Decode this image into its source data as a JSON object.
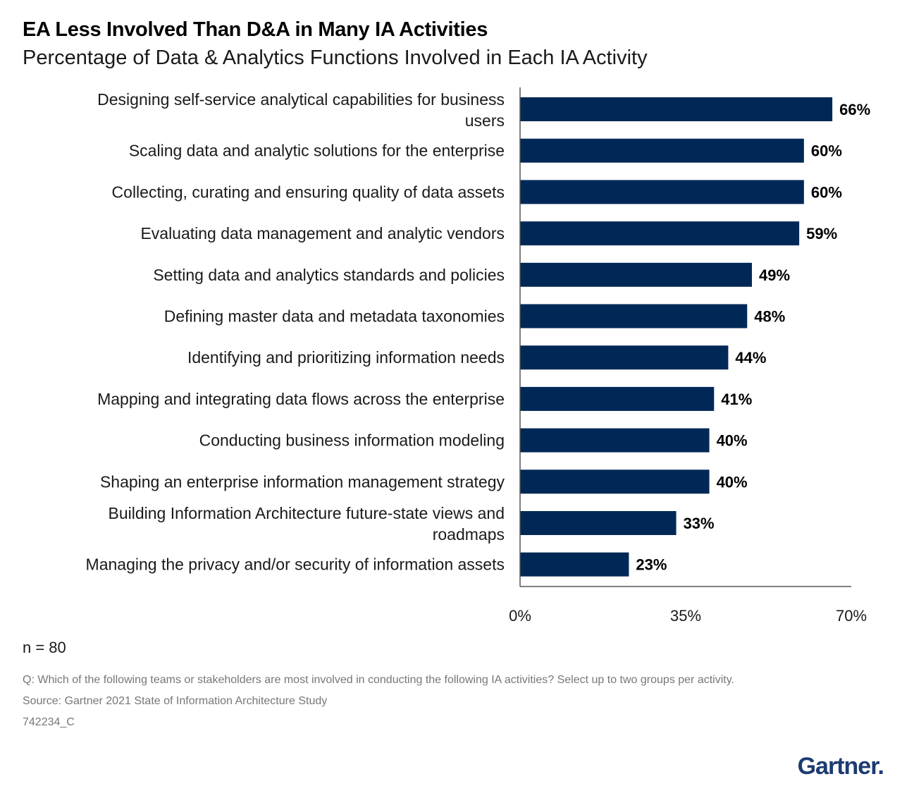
{
  "title": "EA Less Involved Than D&A in Many IA Activities",
  "subtitle": "Percentage of Data & Analytics Functions Involved in Each IA Activity",
  "chart_data": {
    "type": "bar",
    "orientation": "horizontal",
    "categories": [
      [
        "Designing self-service analytical capabilities for business",
        "users"
      ],
      [
        "Scaling data and analytic solutions for the enterprise"
      ],
      [
        "Collecting, curating and ensuring quality of data assets"
      ],
      [
        "Evaluating data management and analytic vendors"
      ],
      [
        "Setting data and analytics standards and policies"
      ],
      [
        "Defining master data and metadata taxonomies"
      ],
      [
        "Identifying and prioritizing information needs"
      ],
      [
        "Mapping and integrating data flows across the enterprise"
      ],
      [
        "Conducting business information modeling"
      ],
      [
        "Shaping an enterprise information management strategy"
      ],
      [
        "Building Information Architecture future-state views and",
        "roadmaps"
      ],
      [
        "Managing the privacy and/or security of information assets"
      ]
    ],
    "values": [
      66,
      60,
      60,
      59,
      49,
      48,
      44,
      41,
      40,
      40,
      33,
      23
    ],
    "value_labels": [
      "66%",
      "60%",
      "60%",
      "59%",
      "49%",
      "48%",
      "44%",
      "41%",
      "40%",
      "40%",
      "33%",
      "23%"
    ],
    "xlim": [
      0,
      70
    ],
    "ticks": [
      0,
      35,
      70
    ],
    "tick_labels": [
      "0%",
      "35%",
      "70%"
    ],
    "bar_color": "#002856",
    "grid": false,
    "legend": "none"
  },
  "footer": {
    "n": "n = 80",
    "question": "Q: Which of the following teams or stakeholders are most involved in conducting the following IA activities? Select up to two groups per activity.",
    "source": "Source: Gartner 2021 State of Information Architecture Study",
    "code": "742234_C"
  },
  "logo": "Gartner."
}
